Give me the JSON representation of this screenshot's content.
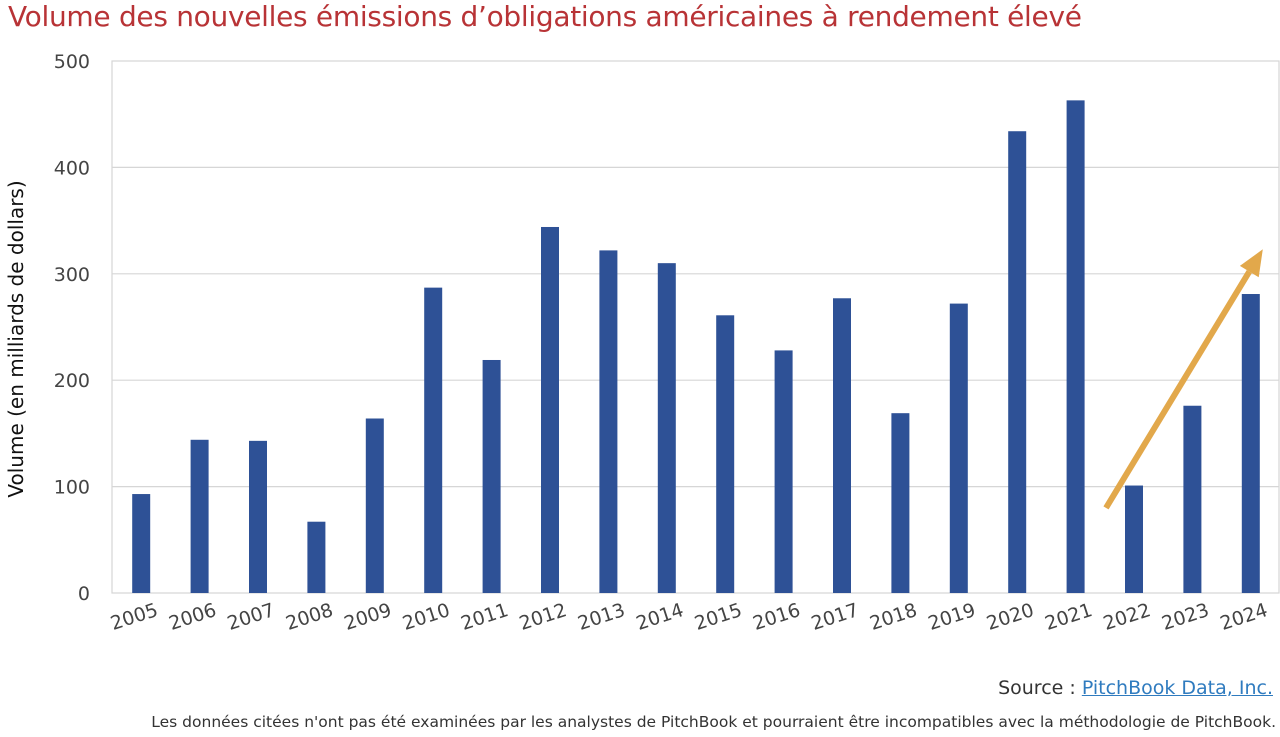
{
  "chart_data": {
    "type": "bar",
    "title": "Volume des nouvelles émissions d’obligations américaines à rendement élevé",
    "ylabel": "Volume (en milliards de dollars)",
    "xlabel": "",
    "categories": [
      "2005",
      "2006",
      "2007",
      "2008",
      "2009",
      "2010",
      "2011",
      "2012",
      "2013",
      "2014",
      "2015",
      "2016",
      "2017",
      "2018",
      "2019",
      "2020",
      "2021",
      "2022",
      "2023",
      "2024"
    ],
    "values": [
      93,
      144,
      143,
      67,
      164,
      287,
      219,
      344,
      322,
      310,
      261,
      228,
      277,
      169,
      272,
      434,
      463,
      101,
      176,
      281
    ],
    "ylim": [
      0,
      500
    ],
    "yticks": [
      "0",
      "100",
      "200",
      "300",
      "400",
      "500"
    ],
    "grid": true,
    "bar_color": "#2e5196",
    "annotation": {
      "type": "trend-arrow",
      "color": "#e2a84b",
      "from": {
        "x": "2022",
        "y": 80
      },
      "to": {
        "x": "2024",
        "y": 323
      }
    }
  },
  "source": {
    "label": "Source : ",
    "link_text": "PitchBook Data, Inc."
  },
  "disclaimer": "Les données citées n'ont pas été examinées par les analystes de PitchBook et pourraient être incompatibles avec la méthodologie de PitchBook.",
  "colors": {
    "title": "#b83336",
    "link": "#2f7bbf"
  }
}
